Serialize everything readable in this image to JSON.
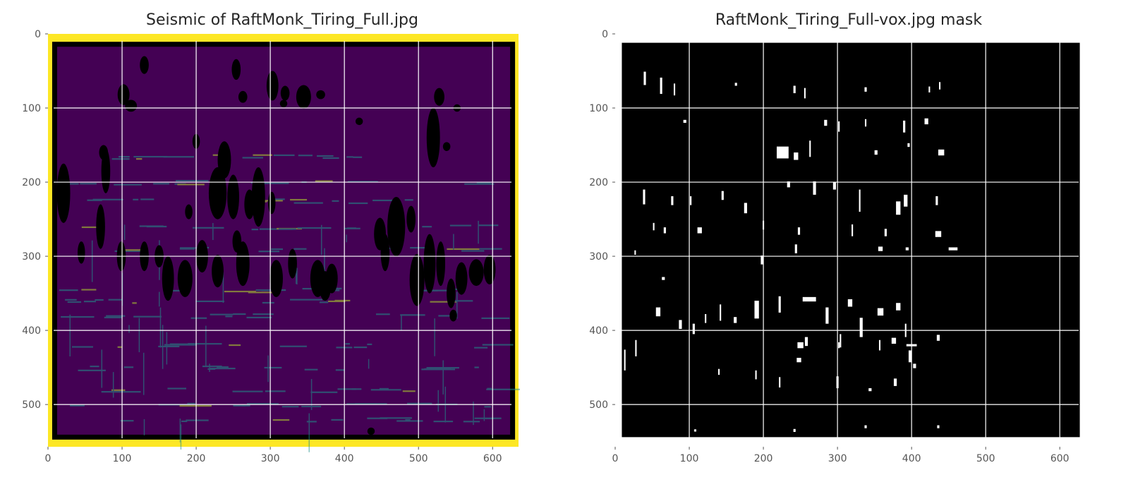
{
  "chart_data": [
    {
      "type": "heatmap",
      "title": "Seismic of RaftMonk_Tiring_Full.jpg",
      "xlim": [
        0,
        635
      ],
      "ylim": [
        557,
        0
      ],
      "x_ticks": [
        0,
        100,
        200,
        300,
        400,
        500,
        600
      ],
      "y_ticks": [
        0,
        100,
        200,
        300,
        400,
        500
      ],
      "x_tick_labels": [
        "0",
        "100",
        "200",
        "300",
        "400",
        "500",
        "600"
      ],
      "y_tick_labels": [
        "0",
        "100",
        "200",
        "300",
        "400",
        "500"
      ],
      "grid": true,
      "colors": {
        "background": "#440154",
        "border": "#fde725",
        "frame": "#000000",
        "grid": "#ffffff",
        "spot": "#21918c",
        "bright": "#b5de2b",
        "blob": "#000000"
      },
      "image_extent": {
        "x": [
          0,
          635
        ],
        "y": [
          0,
          557
        ]
      },
      "inner_frame": {
        "x": [
          9,
          627
        ],
        "y": [
          14,
          544
        ]
      },
      "blobs": [
        [
          130,
          42,
          6,
          12
        ],
        [
          254,
          48,
          6,
          14
        ],
        [
          102,
          82,
          8,
          14
        ],
        [
          112,
          97,
          8,
          8
        ],
        [
          263,
          85,
          6,
          8
        ],
        [
          303,
          70,
          8,
          20
        ],
        [
          320,
          80,
          6,
          10
        ],
        [
          345,
          85,
          10,
          16
        ],
        [
          368,
          82,
          6,
          6
        ],
        [
          318,
          94,
          5,
          5
        ],
        [
          420,
          118,
          5,
          5
        ],
        [
          528,
          85,
          7,
          12
        ],
        [
          520,
          140,
          9,
          40
        ],
        [
          538,
          152,
          5,
          6
        ],
        [
          552,
          100,
          5,
          5
        ],
        [
          75,
          160,
          6,
          10
        ],
        [
          78,
          185,
          6,
          30
        ],
        [
          21,
          215,
          9,
          40
        ],
        [
          71,
          260,
          6,
          30
        ],
        [
          190,
          240,
          5,
          10
        ],
        [
          200,
          145,
          5,
          10
        ],
        [
          238,
          170,
          9,
          25
        ],
        [
          229,
          215,
          12,
          35
        ],
        [
          250,
          220,
          8,
          30
        ],
        [
          272,
          230,
          7,
          20
        ],
        [
          284,
          220,
          9,
          40
        ],
        [
          302,
          228,
          5,
          15
        ],
        [
          255,
          280,
          6,
          15
        ],
        [
          45,
          295,
          5,
          15
        ],
        [
          99,
          300,
          6,
          20
        ],
        [
          130,
          300,
          6,
          20
        ],
        [
          150,
          300,
          6,
          15
        ],
        [
          162,
          330,
          8,
          30
        ],
        [
          185,
          330,
          10,
          25
        ],
        [
          208,
          300,
          8,
          22
        ],
        [
          229,
          320,
          8,
          22
        ],
        [
          263,
          310,
          9,
          30
        ],
        [
          308,
          330,
          9,
          25
        ],
        [
          330,
          310,
          6,
          20
        ],
        [
          364,
          330,
          10,
          25
        ],
        [
          374,
          340,
          8,
          20
        ],
        [
          383,
          330,
          8,
          20
        ],
        [
          470,
          260,
          12,
          40
        ],
        [
          490,
          250,
          6,
          18
        ],
        [
          448,
          270,
          8,
          22
        ],
        [
          455,
          295,
          6,
          25
        ],
        [
          498,
          332,
          10,
          35
        ],
        [
          515,
          310,
          8,
          40
        ],
        [
          530,
          310,
          6,
          30
        ],
        [
          544,
          350,
          6,
          20
        ],
        [
          558,
          330,
          8,
          22
        ],
        [
          578,
          322,
          10,
          18
        ],
        [
          596,
          318,
          8,
          20
        ],
        [
          436,
          536,
          5,
          5
        ],
        [
          547,
          380,
          5,
          8
        ]
      ]
    },
    {
      "type": "heatmap",
      "title": "RaftMonk_Tiring_Full-vox.jpg mask",
      "xlim": [
        0,
        635
      ],
      "ylim": [
        557,
        0
      ],
      "x_ticks": [
        0,
        100,
        200,
        300,
        400,
        500,
        600
      ],
      "y_ticks": [
        0,
        100,
        200,
        300,
        400,
        500
      ],
      "x_tick_labels": [
        "0",
        "100",
        "200",
        "300",
        "400",
        "500",
        "600"
      ],
      "y_tick_labels": [
        "0",
        "100",
        "200",
        "300",
        "400",
        "500"
      ],
      "grid": true,
      "colors": {
        "background": "#000000",
        "mask": "#ffffff",
        "grid": "#ffffff",
        "outer": "#ffffff"
      },
      "image_extent": {
        "x": [
          9,
          627
        ],
        "y": [
          12,
          544
        ]
      },
      "mask_regions": [
        [
          40,
          60,
          3,
          18
        ],
        [
          62,
          70,
          3,
          22
        ],
        [
          80,
          75,
          2,
          16
        ],
        [
          163,
          68,
          3,
          4
        ],
        [
          242,
          75,
          3,
          10
        ],
        [
          256,
          80,
          2,
          14
        ],
        [
          338,
          75,
          3,
          6
        ],
        [
          424,
          75,
          2,
          8
        ],
        [
          438,
          70,
          2,
          10
        ],
        [
          94,
          118,
          4,
          4
        ],
        [
          284,
          120,
          4,
          8
        ],
        [
          302,
          125,
          2,
          14
        ],
        [
          338,
          120,
          2,
          10
        ],
        [
          390,
          125,
          3,
          16
        ],
        [
          420,
          118,
          5,
          8
        ],
        [
          226,
          160,
          16,
          16
        ],
        [
          244,
          165,
          6,
          10
        ],
        [
          263,
          155,
          2,
          22
        ],
        [
          352,
          160,
          4,
          6
        ],
        [
          440,
          160,
          8,
          8
        ],
        [
          396,
          150,
          3,
          5
        ],
        [
          39,
          220,
          3,
          20
        ],
        [
          77,
          225,
          3,
          12
        ],
        [
          102,
          225,
          2,
          12
        ],
        [
          145,
          218,
          3,
          12
        ],
        [
          176,
          235,
          4,
          14
        ],
        [
          234,
          203,
          4,
          8
        ],
        [
          269,
          208,
          4,
          18
        ],
        [
          296,
          205,
          4,
          10
        ],
        [
          330,
          225,
          2,
          30
        ],
        [
          382,
          235,
          6,
          18
        ],
        [
          392,
          225,
          5,
          16
        ],
        [
          434,
          225,
          3,
          12
        ],
        [
          52,
          260,
          2,
          10
        ],
        [
          67,
          265,
          3,
          8
        ],
        [
          114,
          265,
          6,
          8
        ],
        [
          200,
          258,
          2,
          12
        ],
        [
          248,
          266,
          3,
          10
        ],
        [
          320,
          265,
          2,
          16
        ],
        [
          365,
          268,
          3,
          10
        ],
        [
          436,
          270,
          8,
          8
        ],
        [
          456,
          290,
          12,
          4
        ],
        [
          358,
          290,
          6,
          6
        ],
        [
          394,
          290,
          4,
          4
        ],
        [
          198,
          305,
          3,
          12
        ],
        [
          244,
          290,
          3,
          12
        ],
        [
          27,
          295,
          2,
          6
        ],
        [
          65,
          330,
          4,
          4
        ],
        [
          262,
          358,
          18,
          6
        ],
        [
          222,
          365,
          3,
          22
        ],
        [
          317,
          363,
          6,
          10
        ],
        [
          358,
          375,
          8,
          10
        ],
        [
          382,
          368,
          6,
          10
        ],
        [
          436,
          410,
          4,
          8
        ],
        [
          400,
          420,
          14,
          3
        ],
        [
          58,
          375,
          6,
          12
        ],
        [
          88,
          392,
          4,
          12
        ],
        [
          106,
          398,
          3,
          14
        ],
        [
          122,
          384,
          2,
          12
        ],
        [
          142,
          376,
          2,
          22
        ],
        [
          162,
          386,
          4,
          8
        ],
        [
          191,
          372,
          6,
          24
        ],
        [
          258,
          415,
          4,
          12
        ],
        [
          286,
          380,
          4,
          22
        ],
        [
          332,
          396,
          4,
          26
        ],
        [
          357,
          420,
          2,
          14
        ],
        [
          376,
          414,
          6,
          8
        ],
        [
          304,
          414,
          2,
          18
        ],
        [
          250,
          420,
          8,
          8
        ],
        [
          392,
          400,
          2,
          18
        ],
        [
          398,
          435,
          4,
          16
        ],
        [
          404,
          448,
          4,
          6
        ],
        [
          28,
          424,
          2,
          22
        ],
        [
          13,
          440,
          2,
          28
        ],
        [
          140,
          456,
          2,
          8
        ],
        [
          190,
          460,
          2,
          12
        ],
        [
          222,
          470,
          2,
          14
        ],
        [
          248,
          440,
          6,
          6
        ],
        [
          300,
          470,
          3,
          16
        ],
        [
          344,
          480,
          4,
          4
        ],
        [
          378,
          470,
          4,
          10
        ],
        [
          108,
          535,
          3,
          3
        ],
        [
          242,
          535,
          3,
          4
        ],
        [
          338,
          530,
          3,
          4
        ],
        [
          436,
          530,
          3,
          4
        ],
        [
          302,
          420,
          2,
          8
        ]
      ]
    }
  ]
}
